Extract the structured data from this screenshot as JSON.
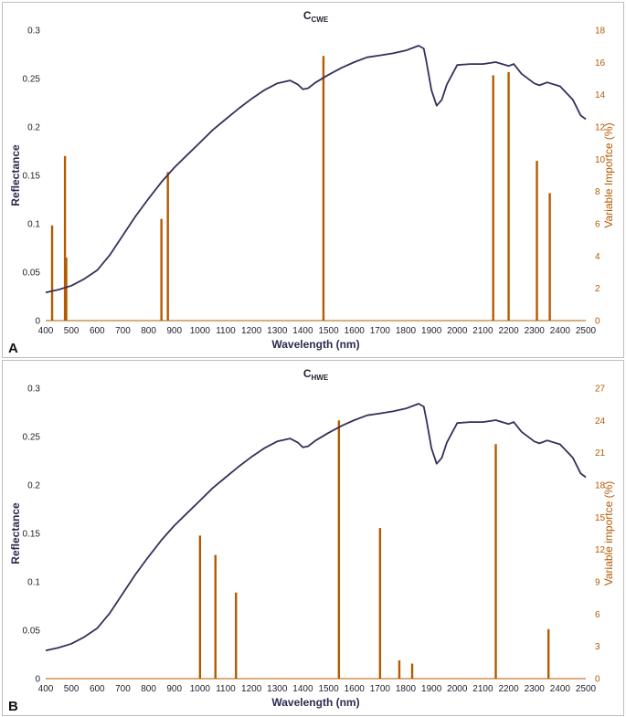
{
  "chart_data": [
    {
      "type": "line+bar",
      "panel_label": "A",
      "title_main": "C",
      "title_sub": "CWE",
      "xlabel": "Wavelength (nm)",
      "ylabel": "Reflectance",
      "y2label": "Variable Importce (%)",
      "xlim": [
        400,
        2500
      ],
      "ylim": [
        0,
        0.3
      ],
      "y2lim": [
        0,
        18
      ],
      "x_ticks": [
        400,
        500,
        600,
        700,
        800,
        900,
        1000,
        1100,
        1200,
        1300,
        1400,
        1500,
        1600,
        1700,
        1800,
        1900,
        2000,
        2100,
        2200,
        2300,
        2400,
        2500
      ],
      "y_ticks": [
        "0",
        "0.05",
        "0.1",
        "0.15",
        "0.2",
        "0.25",
        "0.3"
      ],
      "y2_ticks": [
        "0",
        "2",
        "4",
        "6",
        "8",
        "10",
        "12",
        "14",
        "16",
        "18"
      ],
      "line_color": "#35305a",
      "bar_color": "#b45a00",
      "reflectance": {
        "x": [
          400,
          450,
          500,
          550,
          600,
          650,
          700,
          750,
          800,
          850,
          900,
          950,
          1000,
          1050,
          1100,
          1150,
          1200,
          1250,
          1300,
          1350,
          1380,
          1400,
          1420,
          1450,
          1500,
          1550,
          1600,
          1650,
          1700,
          1750,
          1800,
          1850,
          1870,
          1880,
          1900,
          1920,
          1940,
          1960,
          2000,
          2050,
          2100,
          2150,
          2200,
          2220,
          2250,
          2300,
          2320,
          2350,
          2400,
          2450,
          2480,
          2500
        ],
        "y": [
          0.029,
          0.032,
          0.036,
          0.043,
          0.052,
          0.068,
          0.088,
          0.108,
          0.126,
          0.143,
          0.158,
          0.171,
          0.184,
          0.197,
          0.208,
          0.219,
          0.229,
          0.238,
          0.245,
          0.248,
          0.244,
          0.239,
          0.24,
          0.246,
          0.254,
          0.261,
          0.267,
          0.272,
          0.274,
          0.276,
          0.279,
          0.284,
          0.281,
          0.268,
          0.238,
          0.222,
          0.228,
          0.244,
          0.264,
          0.265,
          0.265,
          0.267,
          0.263,
          0.265,
          0.255,
          0.245,
          0.243,
          0.246,
          0.242,
          0.228,
          0.212,
          0.208
        ]
      },
      "importance": {
        "x": [
          425,
          475,
          480,
          850,
          875,
          1480,
          2140,
          2200,
          2310,
          2360
        ],
        "y": [
          5.9,
          10.2,
          3.9,
          6.3,
          9.2,
          16.4,
          15.2,
          15.4,
          9.9,
          7.9
        ]
      }
    },
    {
      "type": "line+bar",
      "panel_label": "B",
      "title_main": "C",
      "title_sub": "HWE",
      "xlabel": "Wavelength (nm)",
      "ylabel": "Reflectance",
      "y2label": "Variable importce (%)",
      "xlim": [
        400,
        2500
      ],
      "ylim": [
        0,
        0.3
      ],
      "y2lim": [
        0,
        27
      ],
      "x_ticks": [
        400,
        500,
        600,
        700,
        800,
        900,
        1000,
        1100,
        1200,
        1300,
        1400,
        1500,
        1600,
        1700,
        1800,
        1900,
        2000,
        2100,
        2200,
        2300,
        2400,
        2500
      ],
      "y_ticks": [
        "0",
        "0.05",
        "0.1",
        "0.15",
        "0.2",
        "0.25",
        "0.3"
      ],
      "y2_ticks": [
        "0",
        "3",
        "6",
        "9",
        "12",
        "15",
        "18",
        "21",
        "24",
        "27"
      ],
      "line_color": "#35305a",
      "bar_color": "#b45a00",
      "reflectance": {
        "x": [
          400,
          450,
          500,
          550,
          600,
          650,
          700,
          750,
          800,
          850,
          900,
          950,
          1000,
          1050,
          1100,
          1150,
          1200,
          1250,
          1300,
          1350,
          1380,
          1400,
          1420,
          1450,
          1500,
          1550,
          1600,
          1650,
          1700,
          1750,
          1800,
          1850,
          1870,
          1880,
          1900,
          1920,
          1940,
          1960,
          2000,
          2050,
          2100,
          2150,
          2200,
          2220,
          2250,
          2300,
          2320,
          2350,
          2400,
          2450,
          2480,
          2500
        ],
        "y": [
          0.029,
          0.032,
          0.036,
          0.043,
          0.052,
          0.068,
          0.088,
          0.108,
          0.126,
          0.143,
          0.158,
          0.171,
          0.184,
          0.197,
          0.208,
          0.219,
          0.229,
          0.238,
          0.245,
          0.248,
          0.244,
          0.239,
          0.24,
          0.246,
          0.254,
          0.261,
          0.267,
          0.272,
          0.274,
          0.276,
          0.279,
          0.284,
          0.281,
          0.268,
          0.238,
          0.222,
          0.228,
          0.244,
          0.264,
          0.265,
          0.265,
          0.267,
          0.263,
          0.265,
          0.255,
          0.245,
          0.243,
          0.246,
          0.242,
          0.228,
          0.212,
          0.208
        ]
      },
      "importance": {
        "x": [
          1000,
          1060,
          1140,
          1540,
          1700,
          1775,
          1825,
          2150,
          2355
        ],
        "y": [
          13.3,
          11.5,
          8.0,
          24.0,
          14.0,
          1.7,
          1.4,
          21.8,
          4.6
        ]
      }
    }
  ]
}
